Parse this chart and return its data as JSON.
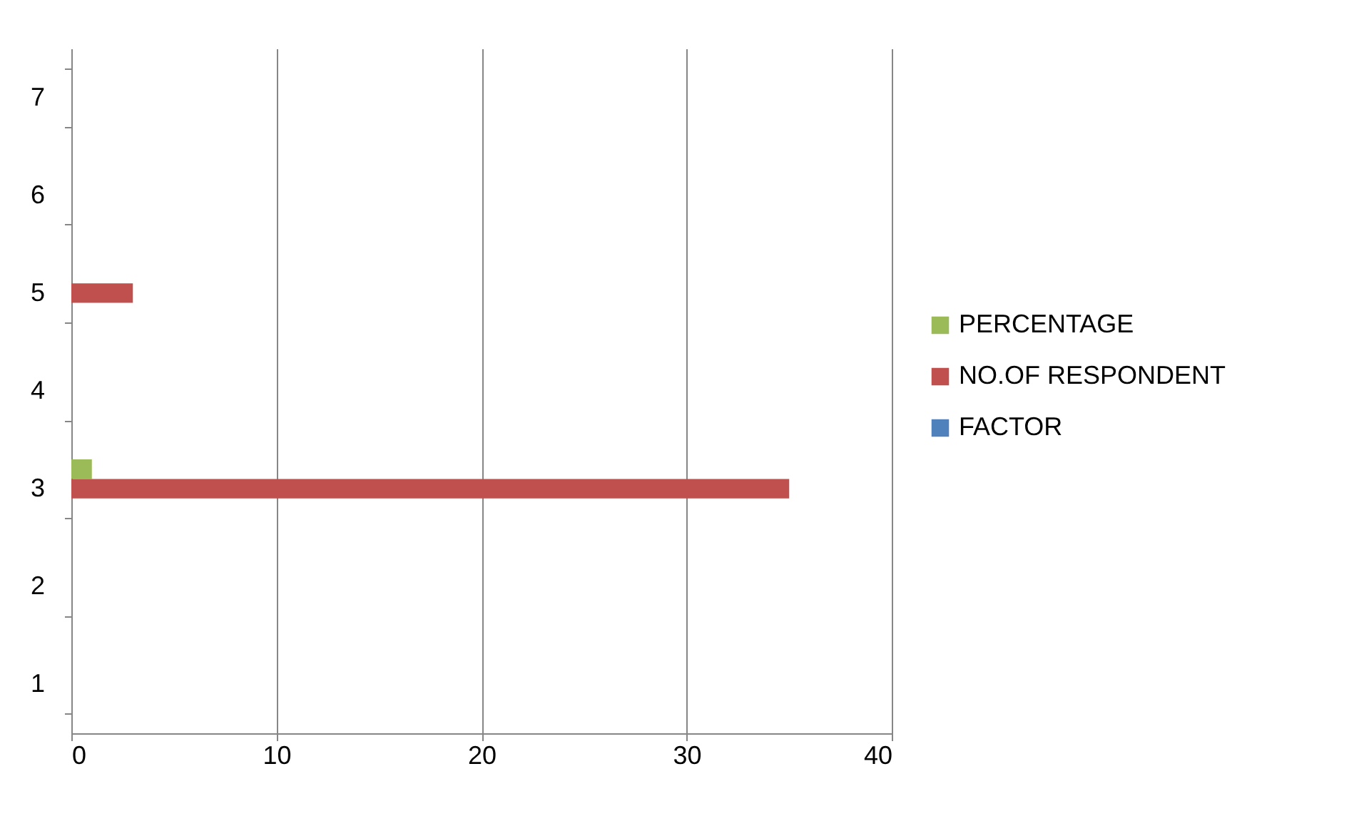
{
  "chart_data": {
    "type": "bar",
    "orientation": "horizontal",
    "categories": [
      "7",
      "6",
      "5",
      "4",
      "3",
      "2",
      "1"
    ],
    "series": [
      {
        "name": "PERCENTAGE",
        "color": "#9bbb59",
        "values": [
          null,
          null,
          null,
          null,
          1,
          null,
          null
        ]
      },
      {
        "name": "NO.OF RESPONDENT",
        "color": "#c0504d",
        "values": [
          null,
          null,
          3,
          null,
          35,
          null,
          null
        ]
      },
      {
        "name": "FACTOR",
        "color": "#4f81bd",
        "values": [
          null,
          null,
          null,
          null,
          null,
          null,
          null
        ]
      }
    ],
    "xlim": [
      0,
      40
    ],
    "xticks": [
      0,
      10,
      20,
      30,
      40
    ],
    "grid": "x",
    "legend": "right"
  }
}
